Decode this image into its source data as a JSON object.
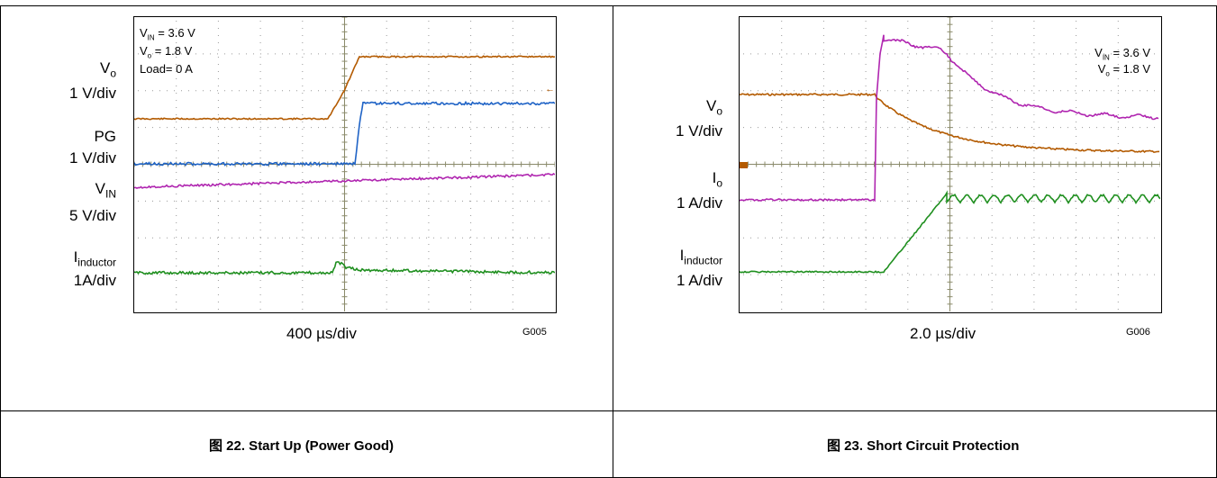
{
  "figures": [
    {
      "caption": "图 22. Start Up (Power Good)",
      "time_div": "400 µs/div",
      "graph_id": "G005",
      "conditions": {
        "vin": "= 3.6 V",
        "vo": "= 1.8 V",
        "load": "Load= 0 A"
      },
      "channels": [
        {
          "label": "V",
          "sub": "o",
          "scale": "1 V/div",
          "color": "#b35a00",
          "marker": "1"
        },
        {
          "label": "PG",
          "sub": "",
          "scale": "1 V/div",
          "color": "#1f63c6",
          "marker": "2"
        },
        {
          "label": "V",
          "sub": "IN",
          "scale": "5 V/div",
          "color": "#b026b0",
          "marker": "3"
        },
        {
          "label": "I",
          "sub": "inductor",
          "scale": "1A/div",
          "color": "#1f8f1f",
          "marker": "4"
        }
      ]
    },
    {
      "caption": "图 23. Short Circuit Protection",
      "time_div": "2.0 µs/div",
      "graph_id": "G006",
      "conditions": {
        "vin": "= 3.6 V",
        "vo": "= 1.8 V"
      },
      "channels": [
        {
          "label": "V",
          "sub": "o",
          "scale": "1 V/div",
          "color": "#b35a00",
          "marker": "1"
        },
        {
          "label": "I",
          "sub": "o",
          "scale": "1 A/div",
          "color": "#b026b0",
          "marker": "3"
        },
        {
          "label": "I",
          "sub": "inductor",
          "scale": "1 A/div",
          "color": "#1f8f1f",
          "marker": "4"
        }
      ]
    }
  ],
  "subscripts": {
    "vin": "IN",
    "vo": "o"
  }
}
